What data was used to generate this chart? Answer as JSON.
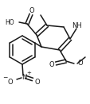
{
  "bg_color": "#ffffff",
  "line_color": "#1a1a1a",
  "bond_width": 1.1,
  "figsize": [
    1.14,
    1.31
  ],
  "dpi": 100,
  "xlim": [
    0,
    114
  ],
  "ylim": [
    0,
    131
  ]
}
